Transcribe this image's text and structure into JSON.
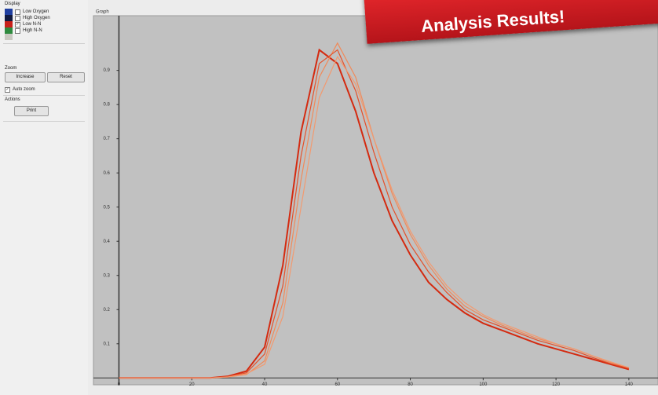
{
  "sidebar": {
    "display_title": "Display",
    "legend": [
      {
        "label": "Low Oxygen",
        "color": "#1f3fa0",
        "checked": false
      },
      {
        "label": "High Oxygen",
        "color": "#101a40",
        "checked": false
      },
      {
        "label": "Low N-N",
        "color": "#c8201a",
        "checked": true
      },
      {
        "label": "High N-N",
        "color": "#2e8a3e",
        "checked": false
      }
    ],
    "zoom_title": "Zoom",
    "zoom_buttons": [
      "Increase",
      "Reset"
    ],
    "auto_zoom": "Auto zoom",
    "actions_title": "Actions",
    "print_button": "Print"
  },
  "graph_title": "Graph",
  "banner": "Analysis Results!",
  "chart_data": {
    "type": "line",
    "x": [
      0,
      5,
      10,
      15,
      20,
      25,
      30,
      35,
      40,
      45,
      50,
      55,
      60,
      65,
      70,
      75,
      80,
      85,
      90,
      95,
      100,
      105,
      110,
      115,
      120,
      125,
      130,
      135,
      140
    ],
    "series": [
      {
        "color": "#d42a10",
        "values": [
          0,
          0,
          0,
          0,
          0,
          0,
          0.005,
          0.02,
          0.09,
          0.33,
          0.72,
          0.96,
          0.92,
          0.78,
          0.6,
          0.46,
          0.36,
          0.28,
          0.23,
          0.19,
          0.16,
          0.14,
          0.12,
          0.1,
          0.085,
          0.07,
          0.055,
          0.04,
          0.025
        ]
      },
      {
        "color": "#f08a5a",
        "values": [
          0,
          0,
          0,
          0,
          0,
          0,
          0.003,
          0.01,
          0.05,
          0.22,
          0.58,
          0.88,
          0.98,
          0.88,
          0.7,
          0.54,
          0.42,
          0.33,
          0.26,
          0.21,
          0.18,
          0.155,
          0.135,
          0.115,
          0.1,
          0.085,
          0.065,
          0.045,
          0.03
        ]
      },
      {
        "color": "#e4502a",
        "values": [
          0,
          0,
          0,
          0,
          0,
          0,
          0.004,
          0.015,
          0.07,
          0.27,
          0.65,
          0.92,
          0.96,
          0.84,
          0.66,
          0.5,
          0.39,
          0.31,
          0.25,
          0.2,
          0.17,
          0.15,
          0.13,
          0.11,
          0.095,
          0.08,
          0.06,
          0.042,
          0.028
        ]
      },
      {
        "color": "#f29a70",
        "values": [
          0,
          0,
          0,
          0,
          0,
          0,
          0.003,
          0.012,
          0.04,
          0.18,
          0.5,
          0.82,
          0.94,
          0.86,
          0.7,
          0.55,
          0.43,
          0.34,
          0.27,
          0.22,
          0.185,
          0.16,
          0.14,
          0.12,
          0.1,
          0.085,
          0.065,
          0.047,
          0.03
        ]
      }
    ],
    "xlim": [
      -7,
      148
    ],
    "ylim": [
      -0.02,
      1.06
    ],
    "xticks": [
      0,
      20,
      40,
      60,
      80,
      100,
      120,
      140
    ],
    "yticks": [
      0.1,
      0.2,
      0.3,
      0.4,
      0.5,
      0.6,
      0.7,
      0.8,
      0.9
    ]
  }
}
